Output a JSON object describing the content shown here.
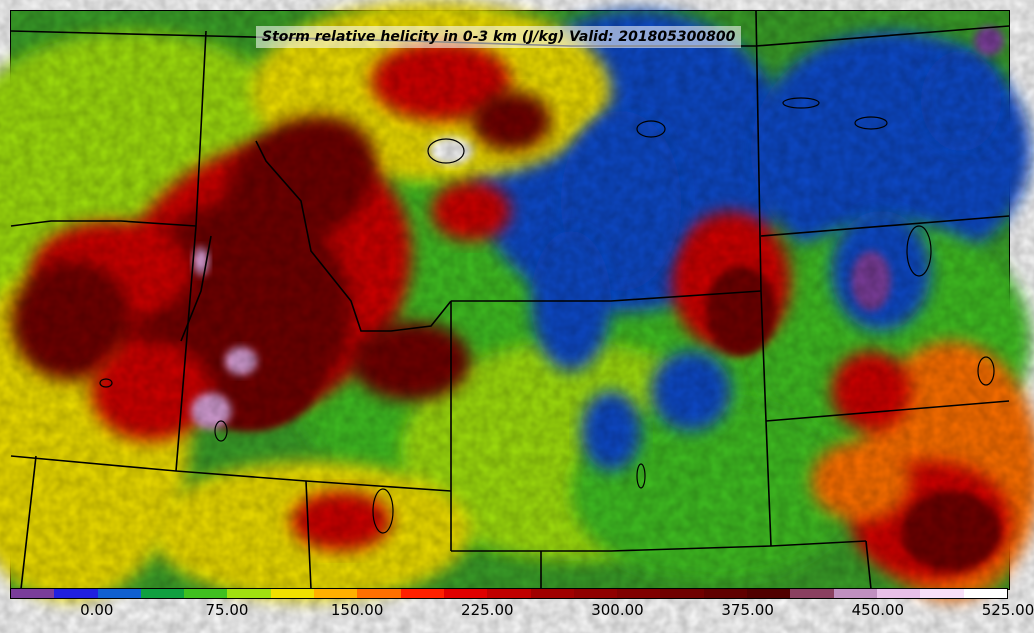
{
  "title": "Storm relative helicity in 0-3 km (J/kg) Valid: 201805300800",
  "colorbar": {
    "colors": [
      "#7a3d9a",
      "#2020e0",
      "#1060d0",
      "#10a040",
      "#40c020",
      "#a0e010",
      "#f0e000",
      "#ffb000",
      "#ff7000",
      "#ff2000",
      "#e00000",
      "#c00000",
      "#a00000",
      "#900000",
      "#800000",
      "#700000",
      "#600000",
      "#500000",
      "#8a4060",
      "#c090c0",
      "#e8c0e8",
      "#f8e0f8",
      "#ffffff"
    ],
    "ticks": [
      {
        "label": "0.00",
        "index": 2
      },
      {
        "label": "75.00",
        "index": 5
      },
      {
        "label": "150.00",
        "index": 8
      },
      {
        "label": "225.00",
        "index": 11
      },
      {
        "label": "300.00",
        "index": 14
      },
      {
        "label": "375.00",
        "index": 17
      },
      {
        "label": "450.00",
        "index": 20
      },
      {
        "label": "525.00",
        "index": 23
      }
    ]
  },
  "map_layers": {
    "base_color": "#3aa028",
    "field_colors": {
      "dark_red": "#700000",
      "red": "#d00000",
      "orange": "#ff7000",
      "yellow": "#f0e000",
      "lime": "#a0e010",
      "green": "#40c020",
      "dark_green": "#10a040",
      "blue": "#1048c8",
      "purple": "#7a3d9a",
      "pink": "#d8a0d8",
      "white": "#ffffff"
    },
    "border_color": "#000000"
  }
}
